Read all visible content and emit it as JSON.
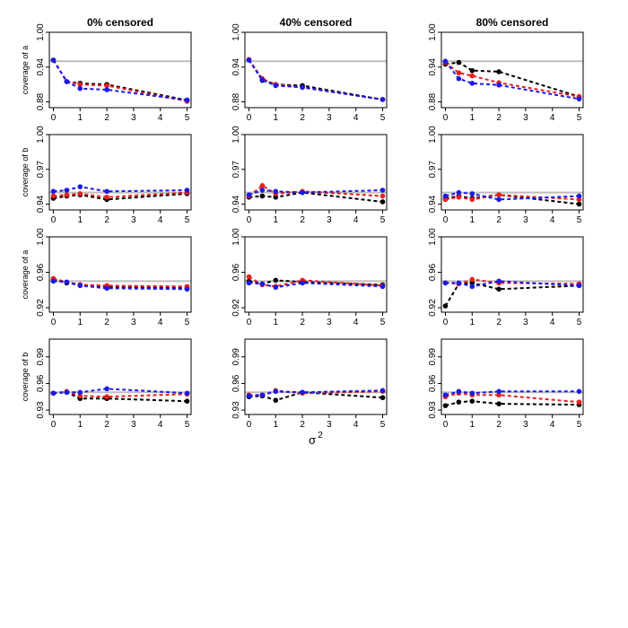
{
  "figure": {
    "x_axis_label": "σ",
    "x_axis_label_superscript": "2"
  },
  "colors": {
    "black": "#000000",
    "red": "#e8201a",
    "blue": "#1a1ae8",
    "reference_line": "#bebebe"
  },
  "chart_data": [
    {
      "type": "line",
      "row": 0,
      "col": 0,
      "title": "0% censored",
      "ylabel": "coverage of a",
      "x": [
        0,
        0.5,
        1,
        2,
        5
      ],
      "xticks": [
        "0",
        "1",
        "2",
        "3",
        "4",
        "5"
      ],
      "xlim": [
        -0.15,
        5.15
      ],
      "ylim": [
        0.87,
        1.0
      ],
      "yticks": [
        "0.88",
        "0.94",
        "1.00"
      ],
      "reference": 0.95,
      "series": [
        {
          "color": "black",
          "values": [
            0.952,
            0.915,
            0.912,
            0.91,
            0.883
          ]
        },
        {
          "color": "red",
          "values": [
            0.952,
            0.915,
            0.91,
            0.908,
            0.881
          ]
        },
        {
          "color": "blue",
          "values": [
            0.952,
            0.915,
            0.903,
            0.901,
            0.883
          ]
        }
      ]
    },
    {
      "type": "line",
      "row": 0,
      "col": 1,
      "title": "40% censored",
      "x": [
        0,
        0.5,
        1,
        2,
        5
      ],
      "xticks": [
        "0",
        "1",
        "2",
        "3",
        "4",
        "5"
      ],
      "xlim": [
        -0.15,
        5.15
      ],
      "ylim": [
        0.87,
        1.0
      ],
      "yticks": [
        "0.88",
        "0.94",
        "1.00"
      ],
      "reference": 0.95,
      "series": [
        {
          "color": "black",
          "values": [
            0.953,
            0.917,
            0.91,
            0.908,
            0.884
          ]
        },
        {
          "color": "red",
          "values": [
            0.953,
            0.92,
            0.91,
            0.905,
            0.884
          ]
        },
        {
          "color": "blue",
          "values": [
            0.952,
            0.918,
            0.908,
            0.905,
            0.884
          ]
        }
      ]
    },
    {
      "type": "line",
      "row": 0,
      "col": 2,
      "title": "80% censored",
      "x": [
        0,
        0.5,
        1,
        2,
        5
      ],
      "xticks": [
        "0",
        "1",
        "2",
        "3",
        "4",
        "5"
      ],
      "xlim": [
        -0.15,
        5.15
      ],
      "ylim": [
        0.87,
        1.0
      ],
      "yticks": [
        "0.88",
        "0.94",
        "1.00"
      ],
      "reference": 0.95,
      "series": [
        {
          "color": "black",
          "values": [
            0.945,
            0.948,
            0.934,
            0.932,
            0.889
          ]
        },
        {
          "color": "red",
          "values": [
            0.948,
            0.93,
            0.925,
            0.913,
            0.889
          ]
        },
        {
          "color": "blue",
          "values": [
            0.95,
            0.92,
            0.912,
            0.909,
            0.885
          ]
        }
      ]
    },
    {
      "type": "line",
      "row": 1,
      "col": 0,
      "ylabel": "coverage of b",
      "x": [
        0,
        0.5,
        1,
        2,
        5
      ],
      "xticks": [
        "0",
        "1",
        "2",
        "3",
        "4",
        "5"
      ],
      "xlim": [
        -0.15,
        5.15
      ],
      "ylim": [
        0.935,
        1.0
      ],
      "yticks": [
        "0.94",
        "0.97",
        "1.00"
      ],
      "reference": 0.95,
      "series": [
        {
          "color": "black",
          "values": [
            0.945,
            0.947,
            0.948,
            0.944,
            0.949
          ]
        },
        {
          "color": "red",
          "values": [
            0.947,
            0.948,
            0.949,
            0.946,
            0.95
          ]
        },
        {
          "color": "blue",
          "values": [
            0.951,
            0.952,
            0.955,
            0.951,
            0.952
          ]
        }
      ]
    },
    {
      "type": "line",
      "row": 1,
      "col": 1,
      "x": [
        0,
        0.5,
        1,
        2,
        5
      ],
      "xticks": [
        "0",
        "1",
        "2",
        "3",
        "4",
        "5"
      ],
      "xlim": [
        -0.15,
        5.15
      ],
      "ylim": [
        0.935,
        1.0
      ],
      "yticks": [
        "0.94",
        "0.97",
        "1.00"
      ],
      "reference": 0.95,
      "series": [
        {
          "color": "black",
          "values": [
            0.946,
            0.947,
            0.946,
            0.95,
            0.942
          ]
        },
        {
          "color": "red",
          "values": [
            0.947,
            0.956,
            0.949,
            0.951,
            0.947
          ]
        },
        {
          "color": "blue",
          "values": [
            0.948,
            0.952,
            0.951,
            0.95,
            0.952
          ]
        }
      ]
    },
    {
      "type": "line",
      "row": 1,
      "col": 2,
      "x": [
        0,
        0.5,
        1,
        2,
        5
      ],
      "xticks": [
        "0",
        "1",
        "2",
        "3",
        "4",
        "5"
      ],
      "xlim": [
        -0.15,
        5.15
      ],
      "ylim": [
        0.935,
        1.0
      ],
      "yticks": [
        "0.94",
        "0.97",
        "1.00"
      ],
      "reference": 0.95,
      "series": [
        {
          "color": "black",
          "values": [
            0.945,
            0.947,
            0.945,
            0.948,
            0.94
          ]
        },
        {
          "color": "red",
          "values": [
            0.944,
            0.946,
            0.944,
            0.948,
            0.944
          ]
        },
        {
          "color": "blue",
          "values": [
            0.947,
            0.95,
            0.949,
            0.944,
            0.947
          ]
        }
      ]
    },
    {
      "type": "line",
      "row": 2,
      "col": 0,
      "ylabel": "coverage of a",
      "x": [
        0,
        0.5,
        1,
        2,
        5
      ],
      "xticks": [
        "0",
        "1",
        "2",
        "3",
        "4",
        "5"
      ],
      "xlim": [
        -0.15,
        5.15
      ],
      "ylim": [
        0.915,
        1.0
      ],
      "yticks": [
        "0.92",
        "0.96",
        "1.00"
      ],
      "reference": 0.95,
      "series": [
        {
          "color": "black",
          "values": [
            0.952,
            0.948,
            0.946,
            0.944,
            0.942
          ]
        },
        {
          "color": "red",
          "values": [
            0.953,
            0.949,
            0.946,
            0.945,
            0.944
          ]
        },
        {
          "color": "blue",
          "values": [
            0.95,
            0.949,
            0.945,
            0.942,
            0.941
          ]
        }
      ]
    },
    {
      "type": "line",
      "row": 2,
      "col": 1,
      "x": [
        0,
        0.5,
        1,
        2,
        5
      ],
      "xticks": [
        "0",
        "1",
        "2",
        "3",
        "4",
        "5"
      ],
      "xlim": [
        -0.15,
        5.15
      ],
      "ylim": [
        0.915,
        1.0
      ],
      "yticks": [
        "0.92",
        "0.96",
        "1.00"
      ],
      "reference": 0.95,
      "series": [
        {
          "color": "black",
          "values": [
            0.95,
            0.947,
            0.951,
            0.949,
            0.946
          ]
        },
        {
          "color": "red",
          "values": [
            0.955,
            0.946,
            0.944,
            0.951,
            0.945
          ]
        },
        {
          "color": "blue",
          "values": [
            0.948,
            0.947,
            0.943,
            0.948,
            0.944
          ]
        }
      ]
    },
    {
      "type": "line",
      "row": 2,
      "col": 2,
      "x": [
        0,
        0.5,
        1,
        2,
        5
      ],
      "xticks": [
        "0",
        "1",
        "2",
        "3",
        "4",
        "5"
      ],
      "xlim": [
        -0.15,
        5.15
      ],
      "ylim": [
        0.915,
        1.0
      ],
      "yticks": [
        "0.92",
        "0.96",
        "1.00"
      ],
      "reference": 0.95,
      "series": [
        {
          "color": "black",
          "values": [
            0.922,
            0.947,
            0.948,
            0.941,
            0.945
          ]
        },
        {
          "color": "red",
          "values": [
            0.948,
            0.947,
            0.952,
            0.948,
            0.947
          ]
        },
        {
          "color": "blue",
          "values": [
            0.948,
            0.948,
            0.944,
            0.95,
            0.945
          ]
        }
      ]
    },
    {
      "type": "line",
      "row": 3,
      "col": 0,
      "ylabel": "coverage of b",
      "x": [
        0,
        0.5,
        1,
        2,
        5
      ],
      "xticks": [
        "0",
        "1",
        "2",
        "3",
        "4",
        "5"
      ],
      "xlim": [
        -0.15,
        5.15
      ],
      "ylim": [
        0.925,
        1.01
      ],
      "yticks": [
        "0.93",
        "0.96",
        "0.99"
      ],
      "reference": 0.95,
      "series": [
        {
          "color": "black",
          "values": [
            0.949,
            0.95,
            0.943,
            0.943,
            0.94
          ]
        },
        {
          "color": "red",
          "values": [
            0.949,
            0.951,
            0.946,
            0.945,
            0.948
          ]
        },
        {
          "color": "blue",
          "values": [
            0.949,
            0.95,
            0.95,
            0.954,
            0.949
          ]
        }
      ]
    },
    {
      "type": "line",
      "row": 3,
      "col": 1,
      "x": [
        0,
        0.5,
        1,
        2,
        5
      ],
      "xticks": [
        "0",
        "1",
        "2",
        "3",
        "4",
        "5"
      ],
      "xlim": [
        -0.15,
        5.15
      ],
      "ylim": [
        0.925,
        1.01
      ],
      "yticks": [
        "0.93",
        "0.96",
        "0.99"
      ],
      "reference": 0.95,
      "series": [
        {
          "color": "black",
          "values": [
            0.945,
            0.946,
            0.941,
            0.95,
            0.944
          ]
        },
        {
          "color": "red",
          "values": [
            0.947,
            0.947,
            0.952,
            0.949,
            0.951
          ]
        },
        {
          "color": "blue",
          "values": [
            0.946,
            0.947,
            0.951,
            0.95,
            0.952
          ]
        }
      ]
    },
    {
      "type": "line",
      "row": 3,
      "col": 2,
      "x": [
        0,
        0.5,
        1,
        2,
        5
      ],
      "xticks": [
        "0",
        "1",
        "2",
        "3",
        "4",
        "5"
      ],
      "xlim": [
        -0.15,
        5.15
      ],
      "ylim": [
        0.925,
        1.01
      ],
      "yticks": [
        "0.93",
        "0.96",
        "0.99"
      ],
      "reference": 0.95,
      "series": [
        {
          "color": "black",
          "values": [
            0.935,
            0.939,
            0.94,
            0.937,
            0.936
          ]
        },
        {
          "color": "red",
          "values": [
            0.945,
            0.949,
            0.947,
            0.947,
            0.939
          ]
        },
        {
          "color": "blue",
          "values": [
            0.947,
            0.951,
            0.949,
            0.951,
            0.951
          ]
        }
      ]
    }
  ]
}
